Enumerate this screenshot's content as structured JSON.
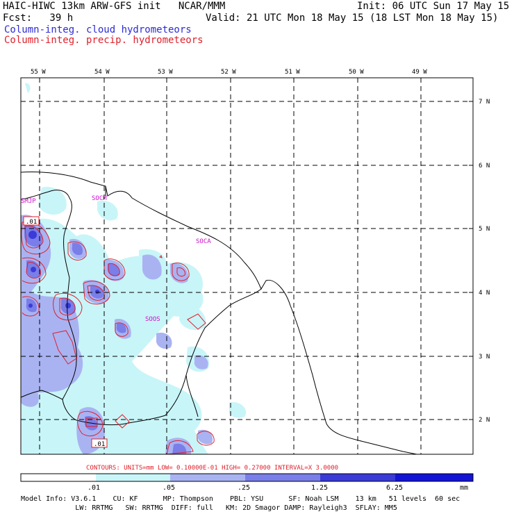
{
  "header": {
    "title_left": "HAIC-HIWC 13km ARW-GFS init   NCAR/MMM",
    "init": "Init: 06 UTC Sun 17 May 15",
    "fcst": "Fcst:   39 h",
    "valid": "Valid: 21 UTC Mon 18 May 15 (18 LST Mon 18 May 15)",
    "field1": "Column-integ. cloud hydrometeors",
    "field2": "Column-integ. precip. hydrometeors"
  },
  "map": {
    "lon_labels": [
      "55 W",
      "54 W",
      "53 W",
      "52 W",
      "51 W",
      "50 W",
      "49 W"
    ],
    "lat_labels": [
      "7 N",
      "6 N",
      "5 N",
      "4 N",
      "3 N",
      "2 N"
    ],
    "station_labels": [
      "SMJP",
      "SOCM",
      "SOCA",
      "SOOS"
    ],
    "box_labels": [
      ".01",
      ".01"
    ],
    "colors": {
      "cloud_light": "#c8f5f8",
      "cloud_mid": "#a9b3f2",
      "cloud_dark": "#7a7ee8",
      "cloud_deep": "#3b3bd8",
      "precip": "#e0202a",
      "station": "#cc10cc"
    }
  },
  "contour_note": "CONTOURS:  UNITS=mm  LOW= 0.10000E-01  HIGH= 0.27000      INTERVAL=X  3.0000",
  "legend": {
    "ticks": [
      ".01",
      ".05",
      ".25",
      "1.25",
      "6.25"
    ],
    "units": "mm",
    "colors": [
      "#ffffff",
      "#c8f5f8",
      "#a9b3f2",
      "#7a7ee8",
      "#3b3bd8",
      "#1414d6"
    ]
  },
  "footer": {
    "line1": "Model Info: V3.6.1    CU: KF      MP: Thompson    PBL: YSU      SF: Noah LSM    13 km   51 levels  60 sec",
    "line2": "             LW: RRTMG   SW: RRTMG  DIFF: full   KM: 2D Smagor DAMP: Rayleigh3  SFLAY: MM5"
  }
}
